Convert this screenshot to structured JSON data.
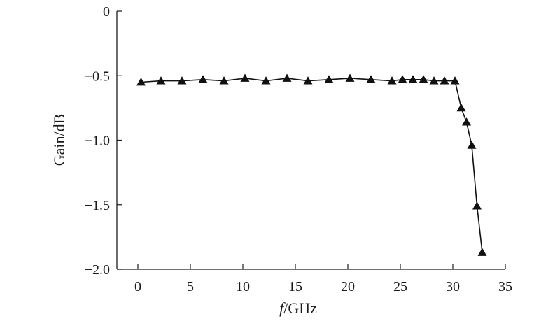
{
  "chart_data": {
    "type": "line",
    "title": "",
    "xlabel_italic": "f",
    "xlabel_rest": "/GHz",
    "ylabel": "Gain/dB",
    "xlim": [
      -2,
      35
    ],
    "ylim": [
      -2.0,
      0
    ],
    "x_ticks": [
      0,
      5,
      10,
      15,
      20,
      25,
      30,
      35
    ],
    "x_tick_labels": [
      "0",
      "5",
      "10",
      "15",
      "20",
      "25",
      "30",
      "35"
    ],
    "y_ticks": [
      0,
      -0.5,
      -1.0,
      -1.5,
      -2.0
    ],
    "y_tick_labels": [
      "0",
      "−0.5",
      "−1.0",
      "−1.5",
      "−2.0"
    ],
    "grid": false,
    "series": [
      {
        "marker": "triangle",
        "color": "#111111",
        "x": [
          0.3,
          2.2,
          4.2,
          6.2,
          8.2,
          10.2,
          12.2,
          14.2,
          16.2,
          18.2,
          20.2,
          22.2,
          24.2,
          25.2,
          26.2,
          27.2,
          28.2,
          29.2,
          30.2,
          30.8,
          31.3,
          31.8,
          32.3,
          32.8
        ],
        "y": [
          -0.55,
          -0.54,
          -0.54,
          -0.53,
          -0.54,
          -0.52,
          -0.54,
          -0.52,
          -0.54,
          -0.53,
          -0.52,
          -0.53,
          -0.54,
          -0.53,
          -0.53,
          -0.53,
          -0.54,
          -0.54,
          -0.54,
          -0.75,
          -0.86,
          -1.04,
          -1.51,
          -1.87
        ]
      }
    ]
  }
}
